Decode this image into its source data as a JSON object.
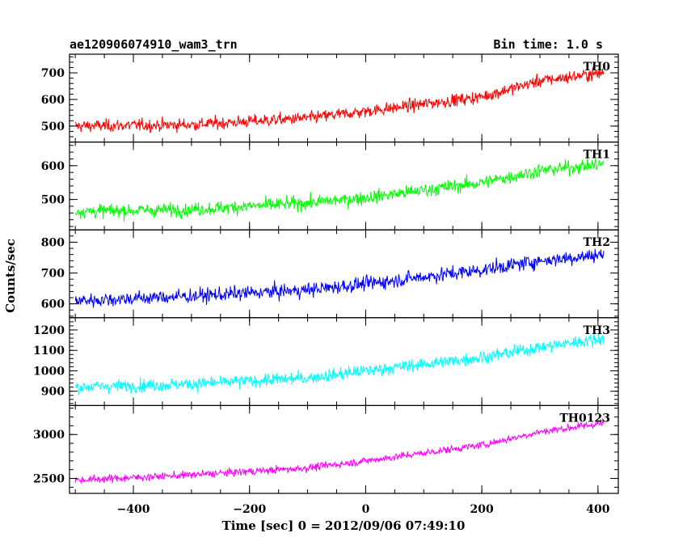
{
  "header": {
    "source": "ae120906074910_wam3_trn",
    "bin_time": "Bin time: 1.0 s"
  },
  "chart_data": {
    "type": "line",
    "xlabel": "Time [sec] 0 = 2012/09/06 07:49:10",
    "ylabel": "Counts/sec",
    "xlim": [
      -510,
      435
    ],
    "x_ticks": [
      -400,
      -200,
      0,
      200,
      400
    ],
    "x_tick_labels": [
      "−400",
      "−200",
      "0",
      "200",
      "400"
    ],
    "x_range": [
      -500,
      410
    ],
    "bin_seconds": 1.0,
    "panels": [
      {
        "label": "TH0",
        "color": "#ff0000",
        "ylim": [
          440,
          770
        ],
        "y_ticks": [
          500,
          600,
          700
        ],
        "trend": [
          [
            -500,
            500
          ],
          [
            -300,
            505
          ],
          [
            -100,
            530
          ],
          [
            0,
            555
          ],
          [
            200,
            610
          ],
          [
            300,
            670
          ],
          [
            410,
            700
          ]
        ],
        "noise": 30
      },
      {
        "label": "TH1",
        "color": "#00ff00",
        "ylim": [
          410,
          670
        ],
        "y_ticks": [
          500,
          600
        ],
        "trend": [
          [
            -500,
            465
          ],
          [
            -300,
            470
          ],
          [
            -100,
            490
          ],
          [
            0,
            505
          ],
          [
            200,
            550
          ],
          [
            300,
            585
          ],
          [
            410,
            605
          ]
        ],
        "noise": 26
      },
      {
        "label": "TH2",
        "color": "#0000ff",
        "ylim": [
          555,
          840
        ],
        "y_ticks": [
          600,
          700,
          800
        ],
        "trend": [
          [
            -500,
            610
          ],
          [
            -300,
            625
          ],
          [
            -100,
            645
          ],
          [
            0,
            665
          ],
          [
            200,
            710
          ],
          [
            300,
            740
          ],
          [
            410,
            760
          ]
        ],
        "noise": 30
      },
      {
        "label": "TH3",
        "color": "#00ffff",
        "ylim": [
          830,
          1260
        ],
        "y_ticks": [
          900,
          1000,
          1100,
          1200
        ],
        "trend": [
          [
            -500,
            920
          ],
          [
            -300,
            935
          ],
          [
            -100,
            965
          ],
          [
            0,
            1000
          ],
          [
            200,
            1065
          ],
          [
            300,
            1115
          ],
          [
            410,
            1160
          ]
        ],
        "noise": 40
      },
      {
        "label": "TH0123",
        "color": "#ff00ff",
        "ylim": [
          2330,
          3330
        ],
        "y_ticks": [
          2500,
          3000
        ],
        "trend": [
          [
            -500,
            2480
          ],
          [
            -300,
            2540
          ],
          [
            -100,
            2620
          ],
          [
            0,
            2700
          ],
          [
            200,
            2880
          ],
          [
            300,
            3030
          ],
          [
            410,
            3130
          ]
        ],
        "noise": 55
      }
    ]
  }
}
